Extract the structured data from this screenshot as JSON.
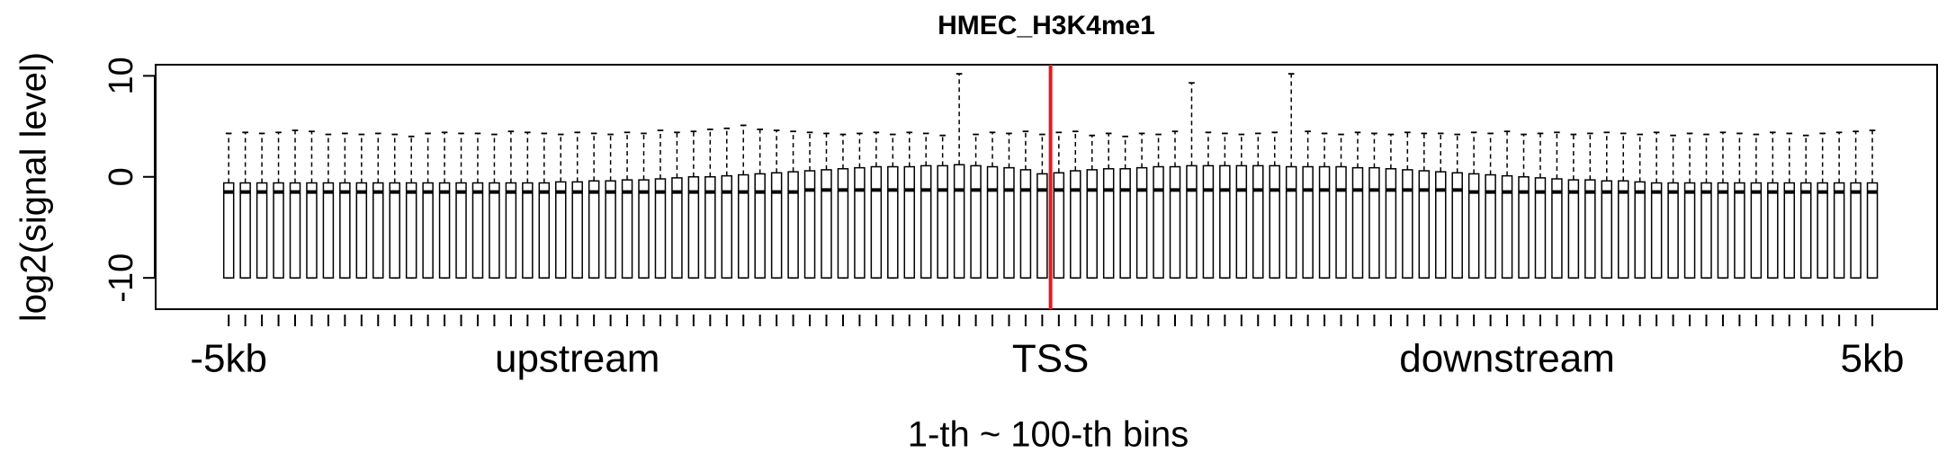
{
  "chart_data": {
    "type": "boxplot",
    "title": "HMEC_H3K4me1",
    "ylabel": "log2(signal level)",
    "xlabel": "1-th ~ 100-th bins",
    "xlim": [
      -3.4,
      103.9
    ],
    "ylim": [
      -13.1,
      11.1
    ],
    "yticks": [
      -10,
      0,
      10
    ],
    "x_labels": [
      {
        "value": 1,
        "label": "-5kb"
      },
      {
        "value": 22,
        "label": "upstream"
      },
      {
        "value": 50.5,
        "label": "TSS"
      },
      {
        "value": 78,
        "label": "downstream"
      },
      {
        "value": 100,
        "label": "5kb"
      }
    ],
    "tss_line": {
      "value": 50.5,
      "color": "#e41a1c"
    },
    "box_color": "#000000",
    "series": {
      "min": [
        -10,
        -10,
        -10,
        -10,
        -10,
        -10,
        -10,
        -10,
        -10,
        -10,
        -10,
        -10,
        -10,
        -10,
        -10,
        -10,
        -10,
        -10,
        -10,
        -10,
        -10,
        -10,
        -10,
        -10,
        -10,
        -10,
        -10,
        -10,
        -10,
        -10,
        -10,
        -10,
        -10,
        -10,
        -10,
        -10,
        -10,
        -10,
        -10,
        -10,
        -10,
        -10,
        -10,
        -10,
        -10,
        -10,
        -10,
        -10,
        -10,
        -10,
        -10,
        -10,
        -10,
        -10,
        -10,
        -10,
        -10,
        -10,
        -10,
        -10,
        -10,
        -10,
        -10,
        -10,
        -10,
        -10,
        -10,
        -10,
        -10,
        -10,
        -10,
        -10,
        -10,
        -10,
        -10,
        -10,
        -10,
        -10,
        -10,
        -10,
        -10,
        -10,
        -10,
        -10,
        -10,
        -10,
        -10,
        -10,
        -10,
        -10,
        -10,
        -10,
        -10,
        -10,
        -10,
        -10,
        -10,
        -10,
        -10,
        -10
      ],
      "q1": [
        -10,
        -10,
        -10,
        -10,
        -10,
        -10,
        -10,
        -10,
        -10,
        -10,
        -10,
        -10,
        -10,
        -10,
        -10,
        -10,
        -10,
        -10,
        -10,
        -10,
        -10,
        -10,
        -10,
        -10,
        -10,
        -10,
        -10,
        -10,
        -10,
        -10,
        -10,
        -10,
        -10,
        -10,
        -10,
        -10,
        -10,
        -10,
        -10,
        -10,
        -10,
        -10,
        -10,
        -10,
        -10,
        -10,
        -10,
        -10,
        -10,
        -10,
        -10,
        -10,
        -10,
        -10,
        -10,
        -10,
        -10,
        -10,
        -10,
        -10,
        -10,
        -10,
        -10,
        -10,
        -10,
        -10,
        -10,
        -10,
        -10,
        -10,
        -10,
        -10,
        -10,
        -10,
        -10,
        -10,
        -10,
        -10,
        -10,
        -10,
        -10,
        -10,
        -10,
        -10,
        -10,
        -10,
        -10,
        -10,
        -10,
        -10,
        -10,
        -10,
        -10,
        -10,
        -10,
        -10,
        -10,
        -10,
        -10,
        -10
      ],
      "median": [
        -1.5,
        -1.5,
        -1.5,
        -1.5,
        -1.5,
        -1.5,
        -1.5,
        -1.5,
        -1.5,
        -1.5,
        -1.5,
        -1.5,
        -1.5,
        -1.5,
        -1.5,
        -1.5,
        -1.5,
        -1.5,
        -1.5,
        -1.5,
        -1.5,
        -1.5,
        -1.5,
        -1.5,
        -1.5,
        -1.5,
        -1.5,
        -1.5,
        -1.5,
        -1.5,
        -1.5,
        -1.5,
        -1.5,
        -1.5,
        -1.5,
        -1.3,
        -1.3,
        -1.3,
        -1.3,
        -1.3,
        -1.3,
        -1.3,
        -1.3,
        -1.3,
        -1.3,
        -1.3,
        -1.3,
        -1.3,
        -1.3,
        -1.3,
        -1.3,
        -1.3,
        -1.3,
        -1.3,
        -1.3,
        -1.3,
        -1.3,
        -1.3,
        -1.3,
        -1.3,
        -1.3,
        -1.3,
        -1.3,
        -1.3,
        -1.3,
        -1.3,
        -1.3,
        -1.3,
        -1.3,
        -1.3,
        -1.3,
        -1.3,
        -1.3,
        -1.3,
        -1.3,
        -1.5,
        -1.5,
        -1.5,
        -1.5,
        -1.5,
        -1.5,
        -1.5,
        -1.5,
        -1.5,
        -1.5,
        -1.5,
        -1.5,
        -1.5,
        -1.5,
        -1.5,
        -1.5,
        -1.5,
        -1.5,
        -1.5,
        -1.5,
        -1.5,
        -1.5,
        -1.5,
        -1.5,
        -1.5
      ],
      "q3": [
        -0.6,
        -0.6,
        -0.6,
        -0.6,
        -0.6,
        -0.6,
        -0.6,
        -0.6,
        -0.6,
        -0.6,
        -0.6,
        -0.6,
        -0.6,
        -0.6,
        -0.6,
        -0.6,
        -0.6,
        -0.6,
        -0.6,
        -0.6,
        -0.5,
        -0.5,
        -0.4,
        -0.4,
        -0.3,
        -0.3,
        -0.2,
        -0.1,
        0,
        0,
        0.1,
        0.2,
        0.3,
        0.4,
        0.5,
        0.6,
        0.7,
        0.8,
        0.9,
        1.0,
        1.0,
        1.0,
        1.1,
        1.1,
        1.2,
        1.1,
        1.0,
        0.9,
        0.7,
        0.3,
        0.4,
        0.6,
        0.7,
        0.8,
        0.8,
        0.9,
        1.0,
        1.0,
        1.1,
        1.1,
        1.1,
        1.1,
        1.1,
        1.1,
        1.0,
        1.0,
        1.0,
        1.0,
        0.9,
        0.9,
        0.8,
        0.7,
        0.6,
        0.5,
        0.4,
        0.3,
        0.2,
        0.1,
        0,
        -0.1,
        -0.2,
        -0.3,
        -0.3,
        -0.4,
        -0.4,
        -0.5,
        -0.6,
        -0.6,
        -0.6,
        -0.6,
        -0.6,
        -0.6,
        -0.6,
        -0.6,
        -0.6,
        -0.6,
        -0.6,
        -0.6,
        -0.6,
        -0.6
      ],
      "max": [
        4.3,
        4.4,
        4.3,
        4.4,
        4.6,
        4.5,
        4.2,
        4.3,
        4.2,
        4.3,
        4.2,
        4.0,
        4.3,
        4.4,
        4.3,
        4.3,
        4.2,
        4.5,
        4.4,
        4.3,
        4.2,
        4.4,
        4.3,
        4.2,
        4.4,
        4.3,
        4.6,
        4.4,
        4.5,
        4.7,
        4.8,
        5.1,
        4.7,
        4.6,
        4.5,
        4.4,
        4.3,
        4.2,
        4.3,
        4.4,
        4.2,
        4.4,
        4.3,
        4.1,
        10.2,
        4.2,
        4.4,
        4.3,
        4.5,
        4.2,
        4.4,
        4.5,
        4.1,
        4.3,
        4.0,
        4.3,
        4.2,
        4.5,
        9.3,
        4.4,
        4.3,
        4.2,
        4.3,
        4.4,
        10.2,
        4.5,
        4.3,
        4.2,
        4.4,
        4.3,
        4.2,
        4.4,
        4.3,
        4.3,
        4.2,
        4.4,
        4.3,
        4.5,
        4.2,
        4.3,
        4.4,
        4.2,
        4.3,
        4.4,
        4.3,
        4.2,
        4.4,
        4.1,
        4.3,
        4.2,
        4.4,
        4.3,
        4.2,
        4.4,
        4.3,
        4.1,
        4.3,
        4.4,
        4.5,
        4.6
      ]
    }
  }
}
